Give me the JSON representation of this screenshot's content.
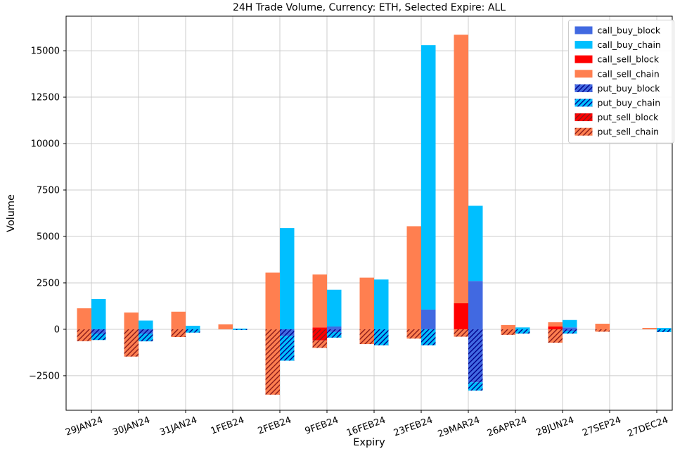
{
  "title": "24H Trade Volume, Currency: ETH, Selected Expire: ALL",
  "chart_data": {
    "type": "bar",
    "title": "24H Trade Volume, Currency: ETH, Selected Expire: ALL",
    "xlabel": "Expiry",
    "ylabel": "Volume",
    "ylim": [
      -4360,
      16860
    ],
    "yticks": [
      -2500,
      0,
      2500,
      5000,
      7500,
      10000,
      12500,
      15000
    ],
    "grid": true,
    "legend_position": "upper right",
    "colors": {
      "figure_background": "#ffffff",
      "grid_color": "#cccccc",
      "spine_color": "#000000",
      "blue_hatch_line": "#00008b",
      "red_hatch_line": "#8b1a1a"
    },
    "categories": [
      "29JAN24",
      "30JAN24",
      "31JAN24",
      "1FEB24",
      "2FEB24",
      "9FEB24",
      "16FEB24",
      "23FEB24",
      "29MAR24",
      "26APR24",
      "28JUN24",
      "27SEP24",
      "27DEC24"
    ],
    "series": [
      {
        "name": "call_buy_block",
        "color": "#4169e1",
        "hatch": false,
        "hatch_color": null,
        "group": "buy",
        "values": [
          0,
          0,
          0,
          0,
          0,
          150,
          0,
          1060,
          2600,
          0,
          100,
          0,
          0
        ]
      },
      {
        "name": "call_buy_chain",
        "color": "#00bfff",
        "hatch": false,
        "hatch_color": null,
        "group": "buy",
        "values": [
          1630,
          470,
          190,
          40,
          5450,
          1980,
          2680,
          14240,
          4050,
          100,
          400,
          0,
          75
        ]
      },
      {
        "name": "call_sell_block",
        "color": "#ff0000",
        "hatch": false,
        "hatch_color": null,
        "group": "sell",
        "values": [
          0,
          0,
          0,
          0,
          0,
          100,
          0,
          0,
          1400,
          0,
          150,
          0,
          0
        ]
      },
      {
        "name": "call_sell_chain",
        "color": "#ff7f50",
        "hatch": false,
        "hatch_color": null,
        "group": "sell",
        "values": [
          1130,
          900,
          950,
          265,
          3050,
          2850,
          2780,
          5550,
          14460,
          230,
          230,
          300,
          75
        ]
      },
      {
        "name": "put_buy_block",
        "color": "#4169e1",
        "hatch": true,
        "hatch_color": "#00008b",
        "group": "buy",
        "values": [
          -230,
          -230,
          0,
          0,
          -350,
          -150,
          0,
          0,
          -2850,
          0,
          -80,
          0,
          0
        ]
      },
      {
        "name": "put_buy_chain",
        "color": "#00bfff",
        "hatch": true,
        "hatch_color": "#00008b",
        "group": "buy",
        "values": [
          -350,
          -420,
          -180,
          -40,
          -1340,
          -300,
          -860,
          -860,
          -450,
          -230,
          -150,
          0,
          -150
        ]
      },
      {
        "name": "put_sell_block",
        "color": "#ff0000",
        "hatch": true,
        "hatch_color": "#8b1a1a",
        "group": "sell",
        "values": [
          0,
          0,
          0,
          0,
          0,
          -600,
          0,
          0,
          0,
          0,
          0,
          0,
          0
        ]
      },
      {
        "name": "put_sell_chain",
        "color": "#ff7f50",
        "hatch": true,
        "hatch_color": "#8b1a1a",
        "group": "sell",
        "values": [
          -640,
          -1470,
          -420,
          0,
          -3520,
          -400,
          -800,
          -500,
          -400,
          -300,
          -720,
          -130,
          0
        ]
      }
    ]
  }
}
